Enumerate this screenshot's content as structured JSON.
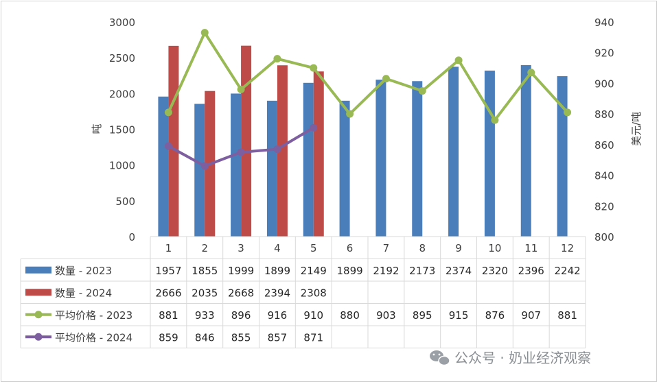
{
  "chart_data": {
    "type": "bar+line",
    "categories": [
      "1",
      "2",
      "3",
      "4",
      "5",
      "6",
      "7",
      "8",
      "9",
      "10",
      "11",
      "12"
    ],
    "left_axis": {
      "label": "吨",
      "ylim": [
        0,
        3000
      ],
      "ticks": [
        "0",
        "500",
        "1000",
        "1500",
        "2000",
        "2500",
        "3000"
      ]
    },
    "right_axis": {
      "label": "美元/吨",
      "ylim": [
        800,
        940
      ],
      "ticks": [
        "800",
        "820",
        "840",
        "860",
        "880",
        "900",
        "920",
        "940"
      ]
    },
    "series": [
      {
        "name": "数量 - 2023",
        "type": "bar",
        "axis": "left",
        "color": "#4a7ebb",
        "values": [
          1957,
          1855,
          1999,
          1899,
          2149,
          1899,
          2192,
          2173,
          2374,
          2320,
          2396,
          2242
        ]
      },
      {
        "name": "数量 - 2024",
        "type": "bar",
        "axis": "left",
        "color": "#be4b48",
        "values": [
          2666,
          2035,
          2668,
          2394,
          2308,
          null,
          null,
          null,
          null,
          null,
          null,
          null
        ]
      },
      {
        "name": "平均价格 - 2023",
        "type": "line",
        "axis": "right",
        "color": "#98b954",
        "values": [
          881,
          933,
          896,
          916,
          910,
          880,
          903,
          895,
          915,
          876,
          907,
          881
        ]
      },
      {
        "name": "平均价格 - 2024",
        "type": "line",
        "axis": "right",
        "color": "#7d5fa0",
        "values": [
          859,
          846,
          855,
          857,
          871,
          null,
          null,
          null,
          null,
          null,
          null,
          null
        ]
      }
    ],
    "data_table": true,
    "grid": false
  },
  "watermark": {
    "text": "公众号 · 奶业经济观察",
    "icon": "wechat-icon"
  }
}
